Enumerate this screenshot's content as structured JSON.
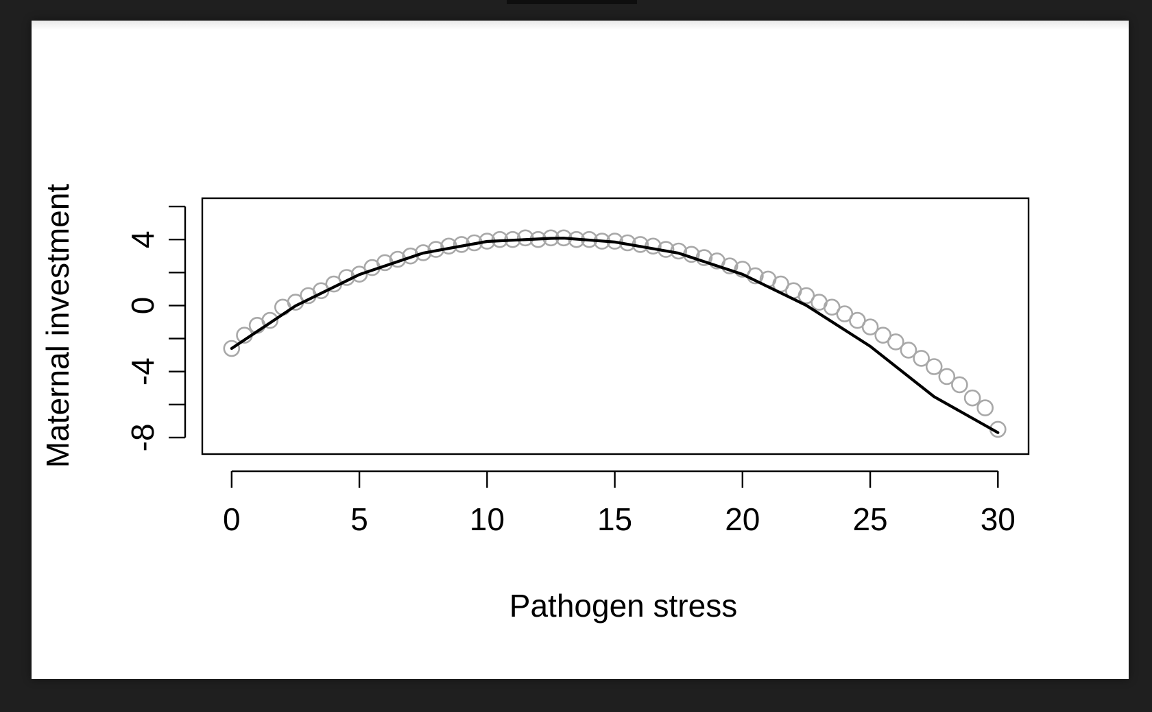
{
  "chart_data": {
    "type": "scatter",
    "xlabel": "Pathogen stress",
    "ylabel": "Maternal investment",
    "xlim": [
      -1.15,
      31.2
    ],
    "ylim": [
      -9.0,
      6.5
    ],
    "x_ticks": [
      0,
      5,
      10,
      15,
      20,
      25,
      30
    ],
    "x_tick_labels": [
      "0",
      "5",
      "10",
      "15",
      "20",
      "25",
      "30"
    ],
    "y_ticks": [
      -8,
      -6,
      -4,
      -2,
      0,
      2,
      4,
      6
    ],
    "y_tick_labels": [
      "-8",
      "",
      "-4",
      "",
      "0",
      "",
      "4",
      ""
    ],
    "grid": false,
    "legend": "none",
    "series": [
      {
        "kind": "points",
        "marker": "open-circle",
        "color": "#a8a8a8",
        "x": [
          0,
          0.5,
          1,
          1.5,
          2,
          2.5,
          3,
          3.5,
          4,
          4.5,
          5,
          5.5,
          6,
          6.5,
          7,
          7.5,
          8,
          8.5,
          9,
          9.5,
          10,
          10.5,
          11,
          11.5,
          12,
          12.5,
          13,
          13.5,
          14,
          14.5,
          15,
          15.5,
          16,
          16.5,
          17,
          17.5,
          18,
          18.5,
          19,
          19.5,
          20,
          20.5,
          21,
          21.5,
          22,
          22.5,
          23,
          23.5,
          24,
          24.5,
          25,
          25.5,
          26,
          26.5,
          27,
          27.5,
          28,
          28.5,
          29,
          29.5,
          30
        ],
        "y": [
          -2.6,
          -1.8,
          -1.2,
          -0.9,
          -0.1,
          0.2,
          0.6,
          0.9,
          1.3,
          1.7,
          1.9,
          2.3,
          2.6,
          2.8,
          3.0,
          3.2,
          3.4,
          3.6,
          3.7,
          3.8,
          3.9,
          4.0,
          4.0,
          4.1,
          4.0,
          4.1,
          4.1,
          4.0,
          4.0,
          3.9,
          3.9,
          3.8,
          3.7,
          3.6,
          3.4,
          3.3,
          3.1,
          2.9,
          2.7,
          2.4,
          2.2,
          1.8,
          1.6,
          1.3,
          0.9,
          0.6,
          0.2,
          -0.1,
          -0.5,
          -0.9,
          -1.3,
          -1.8,
          -2.2,
          -2.7,
          -3.2,
          -3.7,
          -4.3,
          -4.8,
          -5.6,
          -6.2,
          -7.5
        ]
      },
      {
        "kind": "line",
        "color": "#000000",
        "x": [
          0,
          2.5,
          5,
          7.5,
          10,
          12.5,
          13,
          15,
          17.5,
          20,
          22.5,
          25,
          27.5,
          30
        ],
        "y": [
          -2.6,
          -0.02,
          1.88,
          3.18,
          3.88,
          4.07,
          4.08,
          3.85,
          3.17,
          1.89,
          0.01,
          -2.47,
          -5.52,
          -7.7
        ]
      }
    ]
  }
}
